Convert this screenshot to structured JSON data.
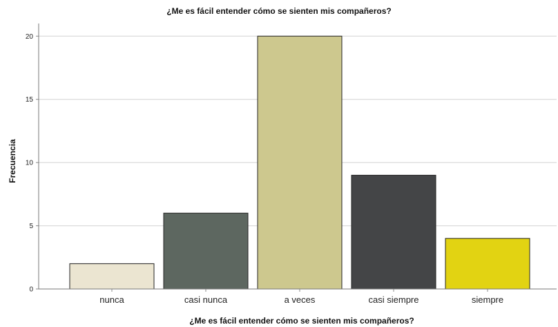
{
  "chart_data": {
    "type": "bar",
    "title": "¿Me es fácil entender cómo se sienten mis compañeros?",
    "xlabel": "¿Me es fácil entender cómo se sienten mis compañeros?",
    "ylabel": "Frecuencia",
    "categories": [
      "nunca",
      "casi nunca",
      "a veces",
      "casi siempre",
      "siempre"
    ],
    "values": [
      2,
      6,
      20,
      9,
      4
    ],
    "ylim": [
      0,
      21
    ],
    "yticks": [
      0,
      5,
      10,
      15,
      20
    ],
    "bar_colors": [
      "#ebe5d1",
      "#5d6760",
      "#cdc88e",
      "#444547",
      "#e2d312"
    ],
    "grid": true,
    "legend": "none"
  }
}
